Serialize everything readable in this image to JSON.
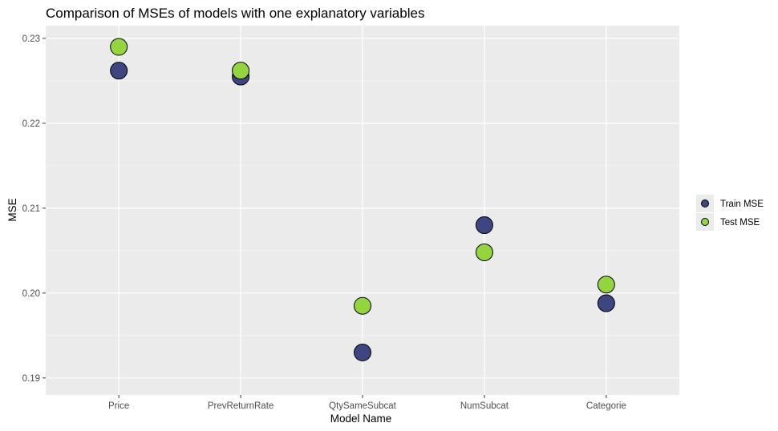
{
  "chart_data": {
    "type": "scatter",
    "title": "Comparison of MSEs of models with one explanatory variables",
    "xlabel": "Model Name",
    "ylabel": "MSE",
    "categories": [
      "Price",
      "PrevReturnRate",
      "QtySameSubcat",
      "NumSubcat",
      "Categorie"
    ],
    "ylim": [
      0.188,
      0.2315
    ],
    "yticks": [
      0.19,
      0.2,
      0.21,
      0.22,
      0.23
    ],
    "ytick_labels": [
      "0.19",
      "0.20",
      "0.21",
      "0.22",
      "0.23"
    ],
    "series": [
      {
        "name": "Train MSE",
        "color": "#3d4681",
        "values": [
          0.2262,
          0.2255,
          0.193,
          0.208,
          0.1988
        ]
      },
      {
        "name": "Test MSE",
        "color": "#94d43e",
        "values": [
          0.229,
          0.2262,
          0.1985,
          0.2048,
          0.201
        ]
      }
    ],
    "grid": true,
    "legend": "right"
  }
}
